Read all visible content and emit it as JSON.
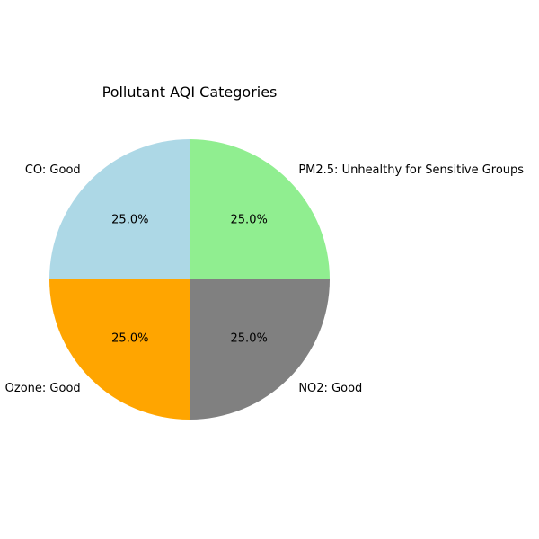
{
  "chart_data": {
    "type": "pie",
    "title": "Pollutant AQI Categories",
    "start_angle_deg": 90,
    "direction": "counterclockwise",
    "autopct_format": "%.1f%%",
    "slices": [
      {
        "label": "CO: Good",
        "value": 25.0,
        "color": "#add8e6"
      },
      {
        "label": "Ozone: Good",
        "value": 25.0,
        "color": "#ffa500"
      },
      {
        "label": "NO2: Good",
        "value": 25.0,
        "color": "#808080"
      },
      {
        "label": "PM2.5: Unhealthy for Sensitive Groups",
        "value": 25.0,
        "color": "#90ee90"
      }
    ]
  }
}
